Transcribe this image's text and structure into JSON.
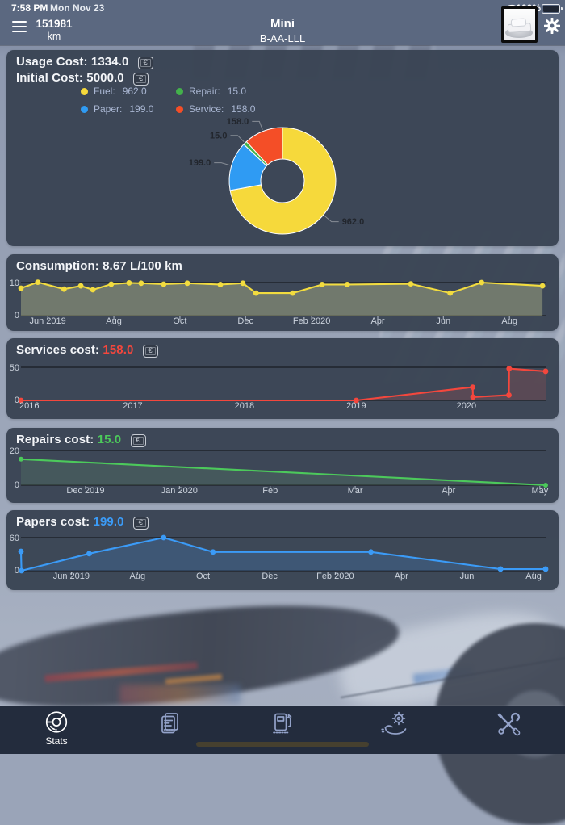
{
  "status_bar": {
    "time": "7:58 PM",
    "date": "Mon Nov 23",
    "battery_pct": "100%",
    "wifi_icon": "wifi-icon",
    "battery_icon": "battery-icon"
  },
  "nav_bar": {
    "menu_icon": "hamburger-menu-icon",
    "odometer_value": "151981",
    "odometer_unit": "km",
    "vehicle_name": "Mini",
    "license_plate": "B-AA-LLL",
    "vehicle_photo": "car-avatar",
    "settings_icon": "gear-icon"
  },
  "usage_panel": {
    "usage_label": "Usage Cost:",
    "usage_value": "1334.0",
    "initial_label": "Initial Cost:",
    "initial_value": "5000.0",
    "currency_symbol": "€",
    "legend": [
      {
        "name": "Fuel:",
        "value": "962.0",
        "color": "#F6D93B"
      },
      {
        "name": "Repair:",
        "value": "15.0",
        "color": "#43B14B"
      },
      {
        "name": "Paper:",
        "value": "199.0",
        "color": "#2F9BF3"
      },
      {
        "name": "Service:",
        "value": "158.0",
        "color": "#F44E27"
      }
    ]
  },
  "consumption_panel": {
    "title": "Consumption: 8.67 L/100 km"
  },
  "services_panel": {
    "label": "Services cost:",
    "value": "158.0",
    "value_color": "#F4473D",
    "currency_symbol": "€"
  },
  "repairs_panel": {
    "label": "Repairs cost:",
    "value": "15.0",
    "value_color": "#4CC95B",
    "currency_symbol": "€"
  },
  "papers_panel": {
    "label": "Papers cost:",
    "value": "199.0",
    "value_color": "#3B9BF7",
    "currency_symbol": "€"
  },
  "chart_data": [
    {
      "id": "usage_pie",
      "type": "pie",
      "title": "Usage Cost",
      "total": 1334.0,
      "slices": [
        {
          "label": "Fuel",
          "value": 962.0,
          "display": "962.0",
          "color": "#F6D93B"
        },
        {
          "label": "Paper",
          "value": 199.0,
          "display": "199.0",
          "color": "#2F9BF3"
        },
        {
          "label": "Repair",
          "value": 15.0,
          "display": "15.0",
          "color": "#43B14B"
        },
        {
          "label": "Service",
          "value": 158.0,
          "display": "158.0",
          "color": "#F44E27"
        }
      ]
    },
    {
      "id": "consumption",
      "type": "area",
      "title": "Consumption: 8.67 L/100 km",
      "ylabel": "L/100 km",
      "line_color": "#F2DC3F",
      "fill_color": "rgba(187,191,141,0.42)",
      "grid_value": 10,
      "ylim": [
        0,
        10.5
      ],
      "x_ticks": [
        {
          "label": "Jun 2019",
          "f": 0.051
        },
        {
          "label": "Aug",
          "f": 0.177
        },
        {
          "label": "Oct",
          "f": 0.303
        },
        {
          "label": "Dec",
          "f": 0.428
        },
        {
          "label": "Feb 2020",
          "f": 0.554
        },
        {
          "label": "Apr",
          "f": 0.68
        },
        {
          "label": "Jun",
          "f": 0.805
        },
        {
          "label": "Aug",
          "f": 0.931
        }
      ],
      "points": [
        [
          0,
          8.3
        ],
        [
          0.032,
          10.1
        ],
        [
          0.082,
          8.0
        ],
        [
          0.114,
          9.0
        ],
        [
          0.137,
          7.8
        ],
        [
          0.172,
          9.5
        ],
        [
          0.206,
          9.9
        ],
        [
          0.229,
          9.8
        ],
        [
          0.272,
          9.5
        ],
        [
          0.317,
          9.8
        ],
        [
          0.38,
          9.4
        ],
        [
          0.423,
          9.8
        ],
        [
          0.448,
          6.8
        ],
        [
          0.518,
          6.8
        ],
        [
          0.574,
          9.4
        ],
        [
          0.622,
          9.4
        ],
        [
          0.743,
          9.6
        ],
        [
          0.818,
          6.8
        ],
        [
          0.878,
          10.0
        ],
        [
          0.994,
          9.0
        ]
      ]
    },
    {
      "id": "services",
      "type": "area",
      "title": "Services cost",
      "total": 158.0,
      "line_color": "#F4473D",
      "fill_color": "rgba(235,85,75,0.16)",
      "grid_value": 50,
      "ylim": [
        0,
        53
      ],
      "x_ticks": [
        {
          "label": "2016",
          "f": 0,
          "anchor": "start"
        },
        {
          "label": "2017",
          "f": 0.213
        },
        {
          "label": "2018",
          "f": 0.426
        },
        {
          "label": "2019",
          "f": 0.639
        },
        {
          "label": "2020",
          "f": 0.849
        }
      ],
      "points": [
        [
          0,
          0
        ],
        [
          0.639,
          0
        ],
        [
          0.861,
          20
        ],
        [
          0.8615,
          5
        ],
        [
          0.93,
          8
        ],
        [
          0.9305,
          48
        ],
        [
          1,
          44
        ]
      ]
    },
    {
      "id": "repairs",
      "type": "area",
      "title": "Repairs cost",
      "total": 15.0,
      "line_color": "#4CC95B",
      "fill_color": "rgba(122,208,132,0.13)",
      "grid_value": 20,
      "ylim": [
        0,
        22
      ],
      "x_ticks": [
        {
          "label": "Dec 2019",
          "f": 0.123
        },
        {
          "label": "Jan 2020",
          "f": 0.302
        },
        {
          "label": "Feb",
          "f": 0.475
        },
        {
          "label": "Mar",
          "f": 0.637
        },
        {
          "label": "Apr",
          "f": 0.815
        },
        {
          "label": "May",
          "f": 0.989
        }
      ],
      "points": [
        [
          0,
          15
        ],
        [
          1,
          0
        ]
      ]
    },
    {
      "id": "papers",
      "type": "area",
      "title": "Papers cost",
      "total": 199.0,
      "line_color": "#3B9BF7",
      "fill_color": "rgba(72,150,238,0.20)",
      "grid_value": 60,
      "ylim": [
        0,
        64
      ],
      "x_ticks": [
        {
          "label": "Jun 2019",
          "f": 0.096
        },
        {
          "label": "Aug",
          "f": 0.222
        },
        {
          "label": "Oct",
          "f": 0.347
        },
        {
          "label": "Dec",
          "f": 0.474
        },
        {
          "label": "Feb 2020",
          "f": 0.599
        },
        {
          "label": "Apr",
          "f": 0.725
        },
        {
          "label": "Jun",
          "f": 0.85
        },
        {
          "label": "Aug",
          "f": 0.977
        }
      ],
      "points": [
        [
          0,
          35
        ],
        [
          0.001,
          0
        ],
        [
          0.13,
          31
        ],
        [
          0.272,
          60
        ],
        [
          0.366,
          34
        ],
        [
          0.667,
          34
        ],
        [
          0.914,
          3
        ],
        [
          1,
          3
        ]
      ]
    }
  ],
  "tab_bar": {
    "items": [
      {
        "label": "Stats",
        "icon": "stats-donut-chart-icon",
        "active": true
      },
      {
        "icon": "documents-icon"
      },
      {
        "icon": "fuel-pump-icon"
      },
      {
        "icon": "service-hand-gear-icon"
      },
      {
        "icon": "tools-icon"
      }
    ]
  }
}
